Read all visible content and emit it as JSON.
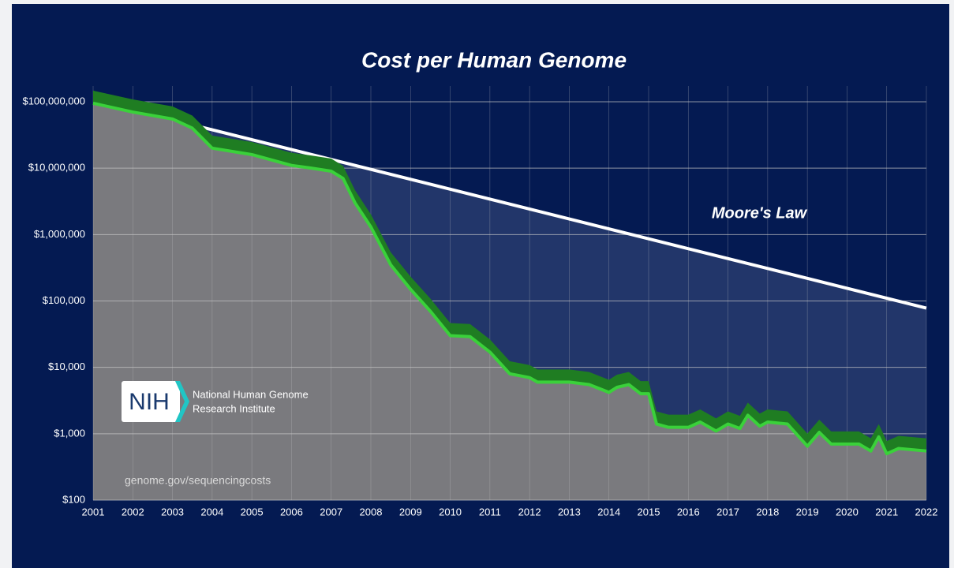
{
  "chart_data": {
    "type": "line",
    "title": "Cost per Human Genome",
    "log_scale_y": true,
    "grid": true,
    "xlim": [
      2001,
      2022
    ],
    "xticks": [
      2001,
      2002,
      2003,
      2004,
      2005,
      2006,
      2007,
      2008,
      2009,
      2010,
      2011,
      2012,
      2013,
      2014,
      2015,
      2016,
      2017,
      2018,
      2019,
      2020,
      2021,
      2022
    ],
    "ylim": [
      100,
      100000000
    ],
    "yticks": [
      {
        "value": 100,
        "label": "$100"
      },
      {
        "value": 1000,
        "label": "$1,000"
      },
      {
        "value": 10000,
        "label": "$10,000"
      },
      {
        "value": 100000,
        "label": "$100,000"
      },
      {
        "value": 1000000,
        "label": "$1,000,000"
      },
      {
        "value": 10000000,
        "label": "$10,000,000"
      },
      {
        "value": 100000000,
        "label": "$100,000,000"
      }
    ],
    "series": [
      {
        "color": "#3ad13a",
        "x": [
          2001.0,
          2002.0,
          2003.0,
          2003.5,
          2004.0,
          2005.0,
          2006.0,
          2006.5,
          2007.0,
          2007.3,
          2007.6,
          2008.0,
          2008.5,
          2009.0,
          2009.5,
          2010.0,
          2010.5,
          2011.0,
          2011.5,
          2012.0,
          2012.2,
          2013.0,
          2013.5,
          2014.0,
          2014.2,
          2014.5,
          2014.8,
          2015.0,
          2015.2,
          2015.5,
          2016.0,
          2016.3,
          2016.7,
          2017.0,
          2017.3,
          2017.5,
          2017.8,
          2018.0,
          2018.5,
          2019.0,
          2019.3,
          2019.6,
          2020.0,
          2020.3,
          2020.6,
          2020.8,
          2021.0,
          2021.3,
          2022.0
        ],
        "values": [
          95000000,
          70000000,
          55000000,
          40000000,
          20000000,
          16000000,
          11000000,
          10000000,
          9000000,
          7000000,
          3000000,
          1300000,
          350000,
          150000,
          70000,
          30000,
          29000,
          17000,
          8000,
          7000,
          6000,
          6000,
          5500,
          4200,
          5000,
          5500,
          4000,
          4000,
          1400,
          1250,
          1250,
          1500,
          1100,
          1400,
          1200,
          1900,
          1300,
          1500,
          1400,
          650,
          1050,
          700,
          700,
          700,
          550,
          900,
          500,
          600,
          550
        ]
      },
      {
        "name": "Moore's Law",
        "color": "#ffffff",
        "x": [
          2003.5,
          2022.0
        ],
        "values": [
          45000000,
          78000
        ]
      }
    ]
  },
  "logo": {
    "mark": "NIH",
    "line1": "National Human Genome",
    "line2": "Research Institute"
  },
  "source": "genome.gov/sequencingcosts"
}
